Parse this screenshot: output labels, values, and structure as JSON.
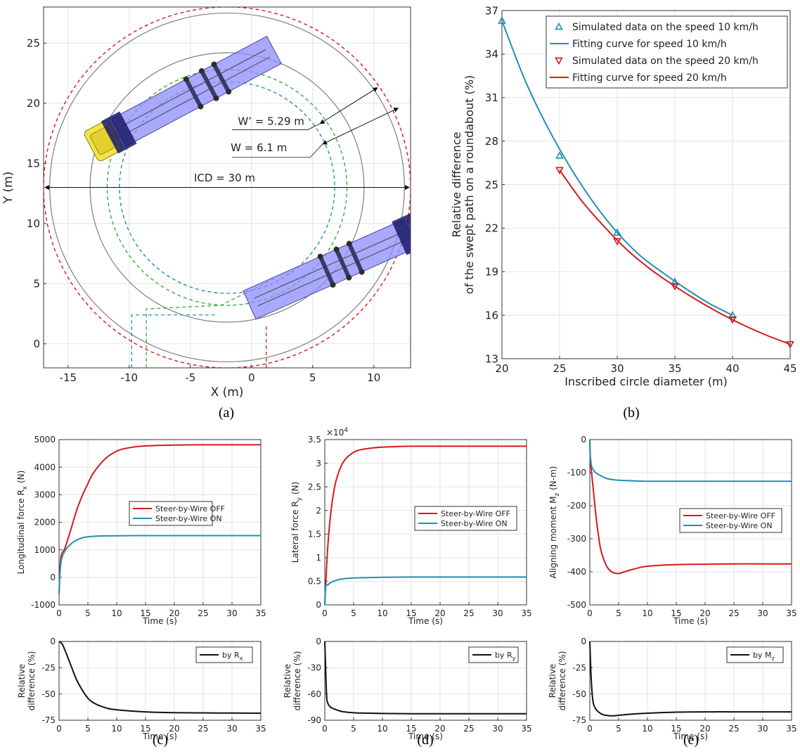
{
  "captions": [
    "(a)",
    "(b)",
    "(c)",
    "(d)",
    "(e)"
  ],
  "colors": {
    "red": "#d7191c",
    "blue": "#1f8fb4",
    "green": "#3aa83a",
    "grey": "#7f7f7f",
    "truck_body": "#8c8cff",
    "cab": "#f2e34a",
    "black": "#111111"
  },
  "chart_data": [
    {
      "id": "a",
      "type": "scatter",
      "title": "",
      "xlabel": "X (m)",
      "ylabel": "Y (m)",
      "xlim": [
        -17,
        13
      ],
      "ylim": [
        -2,
        28
      ],
      "xticks": [
        -15,
        -10,
        -5,
        0,
        5,
        10
      ],
      "yticks": [
        0,
        5,
        10,
        15,
        20,
        25
      ],
      "grid": true,
      "annotations": [
        "W’ = 5.29 m",
        "W = 6.1 m",
        "ICD = 30 m"
      ],
      "circles": [
        {
          "name": "outer swept path",
          "style": "dashed",
          "color": "red",
          "center": [
            -2,
            13
          ],
          "radius": 15
        },
        {
          "name": "outer edge",
          "style": "solid",
          "color": "grey",
          "center": [
            -2,
            13
          ],
          "radius": 14.5
        },
        {
          "name": "inner edge",
          "style": "solid",
          "color": "grey",
          "center": [
            -2,
            13
          ],
          "radius": 11.2
        },
        {
          "name": "green path",
          "style": "dashed",
          "color": "green",
          "center": [
            -2,
            13
          ],
          "radius": 9.8
        },
        {
          "name": "blue path",
          "style": "dashed",
          "color": "blue",
          "center": [
            -2,
            13
          ],
          "radius": 8.8
        }
      ]
    },
    {
      "id": "b",
      "type": "line",
      "title": "",
      "xlabel": "Inscribed circle diameter (m)",
      "ylabel": "Relative difference\nof the swept path on a roundabout (%)",
      "xlim": [
        20,
        45
      ],
      "ylim": [
        13,
        37
      ],
      "xticks": [
        20,
        25,
        30,
        35,
        40,
        45
      ],
      "yticks": [
        13,
        16,
        19,
        22,
        25,
        28,
        31,
        34,
        37
      ],
      "grid": true,
      "legend_position": "top-right",
      "series": [
        {
          "name": "Simulated data on the speed 10 km/h",
          "kind": "markers",
          "marker": "triangle-up",
          "color": "blue",
          "x": [
            20,
            25,
            30,
            35,
            40
          ],
          "y": [
            36.3,
            27.0,
            21.7,
            18.3,
            16.0
          ]
        },
        {
          "name": "Fitting curve for speed 10 km/h",
          "kind": "line",
          "color": "blue",
          "x": [
            20,
            22,
            24,
            26,
            28,
            30,
            32,
            34,
            36,
            38,
            40
          ],
          "y": [
            36.3,
            32.2,
            28.9,
            26.1,
            23.7,
            21.7,
            20.1,
            18.9,
            17.8,
            16.8,
            16.0
          ]
        },
        {
          "name": "Simulated data on the speed 20 km/h",
          "kind": "markers",
          "marker": "triangle-down",
          "color": "red",
          "x": [
            25,
            30,
            35,
            40,
            45
          ],
          "y": [
            26.0,
            21.1,
            18.0,
            15.7,
            14.0
          ]
        },
        {
          "name": "Fitting curve for speed 20 km/h",
          "kind": "line",
          "color": "red",
          "x": [
            25,
            27,
            29,
            31,
            33,
            35,
            37,
            39,
            41,
            43,
            45
          ],
          "y": [
            26.0,
            23.8,
            22.0,
            20.4,
            19.1,
            18.0,
            17.0,
            16.1,
            15.3,
            14.6,
            14.0
          ]
        }
      ]
    },
    {
      "id": "c",
      "type": "line",
      "title": "",
      "xlabel": "Time (s)",
      "ylabel": "Longitudinal force R",
      "ylabel_sub": "x",
      "ylabel_unit": " (N)",
      "xlim": [
        0,
        35
      ],
      "ylim": [
        -1000,
        5000
      ],
      "xticks": [
        0,
        5,
        10,
        15,
        20,
        25,
        30,
        35
      ],
      "yticks": [
        -1000,
        0,
        1000,
        2000,
        3000,
        4000,
        5000
      ],
      "grid": true,
      "legend_position": "center",
      "series": [
        {
          "name": "Steer-by-Wire OFF",
          "color": "red",
          "x": [
            0,
            0.3,
            1,
            2,
            3,
            4,
            5,
            6,
            8,
            10,
            12,
            15,
            20,
            25,
            30,
            35
          ],
          "y": [
            -600,
            700,
            1050,
            1700,
            2400,
            2950,
            3400,
            3800,
            4300,
            4580,
            4700,
            4770,
            4800,
            4810,
            4810,
            4810
          ]
        },
        {
          "name": "Steer-by-Wire ON",
          "color": "blue",
          "x": [
            0,
            0.3,
            1,
            2,
            3,
            4,
            5,
            6,
            8,
            10,
            15,
            20,
            25,
            30,
            35
          ],
          "y": [
            -600,
            500,
            950,
            1200,
            1350,
            1430,
            1470,
            1490,
            1505,
            1510,
            1515,
            1515,
            1515,
            1515,
            1515
          ]
        }
      ]
    },
    {
      "id": "c2",
      "type": "line",
      "title": "",
      "xlabel": "Time (s)",
      "ylabel": "Relative\ndifference (%)",
      "xlim": [
        0,
        35
      ],
      "ylim": [
        -75,
        0
      ],
      "xticks": [
        0,
        5,
        10,
        15,
        20,
        25,
        30,
        35
      ],
      "yticks": [
        -75,
        -50,
        -25,
        0
      ],
      "grid": true,
      "legend_position": "top-right",
      "series": [
        {
          "name": "by R",
          "name_sub": "x",
          "color": "black",
          "x": [
            0,
            0.5,
            1,
            2,
            3,
            4,
            5,
            6,
            8,
            10,
            15,
            20,
            25,
            30,
            35
          ],
          "y": [
            0,
            -2,
            -8,
            -22,
            -36,
            -46,
            -54,
            -58.5,
            -63,
            -65,
            -67,
            -67.8,
            -68,
            -68.2,
            -68.3
          ]
        }
      ]
    },
    {
      "id": "d",
      "type": "line",
      "title": "",
      "xlabel": "Time (s)",
      "ylabel": "Lateral force R",
      "ylabel_sub": "y",
      "ylabel_unit": " (N)",
      "exponent": "×10",
      "exponent_power": "4",
      "xlim": [
        0,
        35
      ],
      "ylim": [
        0,
        3.5
      ],
      "xticks": [
        0,
        5,
        10,
        15,
        20,
        25,
        30,
        35
      ],
      "yticks": [
        0,
        0.5,
        1,
        1.5,
        2,
        2.5,
        3,
        3.5
      ],
      "grid": true,
      "legend_position": "center-right",
      "series": [
        {
          "name": "Steer-by-Wire OFF",
          "color": "red",
          "x": [
            0,
            0.2,
            0.5,
            1,
            1.5,
            2,
            3,
            4,
            5,
            6,
            8,
            10,
            15,
            20,
            25,
            30,
            35
          ],
          "y": [
            0,
            0.5,
            1.2,
            1.9,
            2.35,
            2.65,
            2.98,
            3.14,
            3.23,
            3.28,
            3.32,
            3.34,
            3.36,
            3.36,
            3.36,
            3.36,
            3.36
          ]
        },
        {
          "name": "Steer-by-Wire ON",
          "color": "blue",
          "x": [
            0,
            0.15,
            0.5,
            1,
            2,
            3,
            5,
            8,
            10,
            15,
            20,
            25,
            30,
            35
          ],
          "y": [
            0,
            0.4,
            0.42,
            0.47,
            0.52,
            0.55,
            0.57,
            0.58,
            0.585,
            0.59,
            0.59,
            0.59,
            0.59,
            0.59
          ]
        }
      ]
    },
    {
      "id": "d2",
      "type": "line",
      "title": "",
      "xlabel": "Time (s)",
      "ylabel": "Relative\ndifference (%)",
      "xlim": [
        0,
        35
      ],
      "ylim": [
        -90,
        0
      ],
      "xticks": [
        0,
        5,
        10,
        15,
        20,
        25,
        30,
        35
      ],
      "yticks": [
        -90,
        -60,
        -30,
        0
      ],
      "grid": true,
      "legend_position": "top-right",
      "series": [
        {
          "name": "by R",
          "name_sub": "y",
          "color": "black",
          "x": [
            0,
            0.1,
            0.3,
            0.5,
            1,
            2,
            3,
            5,
            8,
            10,
            15,
            20,
            25,
            30,
            35
          ],
          "y": [
            0,
            -20,
            -60,
            -70,
            -75,
            -78,
            -80,
            -81.5,
            -82,
            -82.3,
            -82.5,
            -82.5,
            -82.5,
            -82.5,
            -82.5
          ]
        }
      ]
    },
    {
      "id": "e",
      "type": "line",
      "title": "",
      "xlabel": "Time (s)",
      "ylabel": "Aligning moment M",
      "ylabel_sub": "z",
      "ylabel_unit": " (N-m)",
      "xlim": [
        0,
        35
      ],
      "ylim": [
        -500,
        0
      ],
      "xticks": [
        0,
        5,
        10,
        15,
        20,
        25,
        30,
        35
      ],
      "yticks": [
        -500,
        -400,
        -300,
        -200,
        -100,
        0
      ],
      "grid": true,
      "legend_position": "center-right",
      "series": [
        {
          "name": "Steer-by-Wire OFF",
          "color": "red",
          "x": [
            0,
            0.1,
            0.3,
            0.6,
            1,
            1.5,
            2,
            3,
            4,
            5,
            6,
            8,
            10,
            15,
            20,
            25,
            30,
            35
          ],
          "y": [
            0,
            -60,
            -100,
            -150,
            -220,
            -290,
            -340,
            -385,
            -402,
            -405,
            -400,
            -390,
            -383,
            -378,
            -377,
            -376,
            -376,
            -376
          ]
        },
        {
          "name": "Steer-by-Wire ON",
          "color": "blue",
          "x": [
            0,
            0.1,
            0.3,
            0.6,
            1,
            2,
            3,
            5,
            8,
            10,
            15,
            20,
            25,
            30,
            35
          ],
          "y": [
            0,
            -50,
            -80,
            -90,
            -100,
            -110,
            -118,
            -123,
            -125,
            -126,
            -126,
            -126,
            -126,
            -126,
            -126
          ]
        }
      ]
    },
    {
      "id": "e2",
      "type": "line",
      "title": "",
      "xlabel": "Time (s)",
      "ylabel": "Relative\ndifference (%)",
      "xlim": [
        0,
        35
      ],
      "ylim": [
        -75,
        0
      ],
      "xticks": [
        0,
        5,
        10,
        15,
        20,
        25,
        30,
        35
      ],
      "yticks": [
        -75,
        -50,
        -25,
        0
      ],
      "grid": true,
      "legend_position": "top-right",
      "series": [
        {
          "name": "by M",
          "name_sub": "z",
          "color": "black",
          "x": [
            0,
            0.2,
            0.5,
            1,
            2,
            3,
            4,
            5,
            7,
            10,
            15,
            20,
            25,
            30,
            35
          ],
          "y": [
            0,
            -30,
            -55,
            -64,
            -69,
            -70.5,
            -70.8,
            -70.3,
            -69.3,
            -68.3,
            -67.3,
            -67,
            -67,
            -67,
            -67
          ]
        }
      ]
    }
  ]
}
